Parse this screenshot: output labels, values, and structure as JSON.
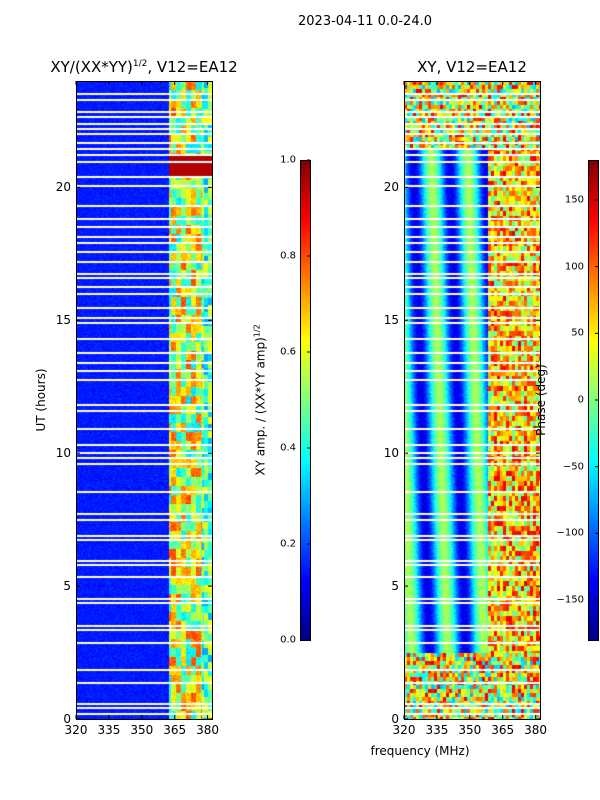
{
  "figure_title": "2023-04-11 0.0-24.0",
  "chart_data": [
    {
      "type": "heatmap",
      "title_main": "XY/(XX*YY)",
      "title_sup": "1/2",
      "title_rest": ", V12=EA12",
      "xlabel": "frequency (MHz)",
      "ylabel": "UT (hours)",
      "xlim": [
        320,
        382
      ],
      "ylim": [
        0,
        24
      ],
      "xticks": [
        "320",
        "335",
        "350",
        "365",
        "380"
      ],
      "xtick_values": [
        320,
        335,
        350,
        365,
        380
      ],
      "yticks": [
        "0",
        "5",
        "10",
        "15",
        "20"
      ],
      "ytick_values": [
        0,
        5,
        10,
        15,
        20
      ],
      "colormap": "jet",
      "colorbar": {
        "label_main": "XY amp. / (XX*YY amp)",
        "label_sup": "1/2",
        "range": [
          0.0,
          1.0
        ],
        "ticks": [
          "0.0",
          "0.2",
          "0.4",
          "0.6",
          "0.8",
          "1.0"
        ],
        "tick_values": [
          0.0,
          0.2,
          0.4,
          0.6,
          0.8,
          1.0
        ]
      }
    },
    {
      "type": "heatmap",
      "title": "XY, V12=EA12",
      "xlabel": "frequency (MHz)",
      "ylabel": "",
      "xlim": [
        320,
        382
      ],
      "ylim": [
        0,
        24
      ],
      "xticks": [
        "320",
        "335",
        "350",
        "365",
        "380"
      ],
      "xtick_values": [
        320,
        335,
        350,
        365,
        380
      ],
      "yticks": [
        "0",
        "5",
        "10",
        "15",
        "20"
      ],
      "ytick_values": [
        0,
        5,
        10,
        15,
        20
      ],
      "colormap": "jet",
      "colorbar": {
        "label": "Phase (deg)",
        "range": [
          -180,
          180
        ],
        "ticks": [
          "−150",
          "−100",
          "−50",
          "0",
          "50",
          "100",
          "150"
        ],
        "tick_values": [
          -150,
          -100,
          -50,
          0,
          50,
          100,
          150
        ]
      }
    }
  ],
  "gap_hours": [
    0.2,
    0.4,
    0.55,
    1.35,
    1.85,
    2.85,
    3.35,
    3.5,
    4.35,
    4.5,
    5.35,
    5.8,
    5.95,
    6.75,
    6.9,
    7.5,
    7.7,
    8.55,
    9.6,
    9.8,
    10.0,
    10.3,
    10.9,
    11.6,
    11.8,
    12.75,
    13.1,
    13.4,
    13.75,
    14.3,
    14.9,
    15.1,
    15.45,
    16.0,
    16.25,
    16.6,
    16.75,
    17.2,
    17.55,
    17.9,
    18.15,
    18.5,
    18.8,
    19.3,
    20.05,
    20.4,
    20.95,
    21.2,
    21.45,
    21.65,
    22.0,
    22.2,
    22.4,
    22.65,
    22.85,
    23.3,
    23.5
  ]
}
